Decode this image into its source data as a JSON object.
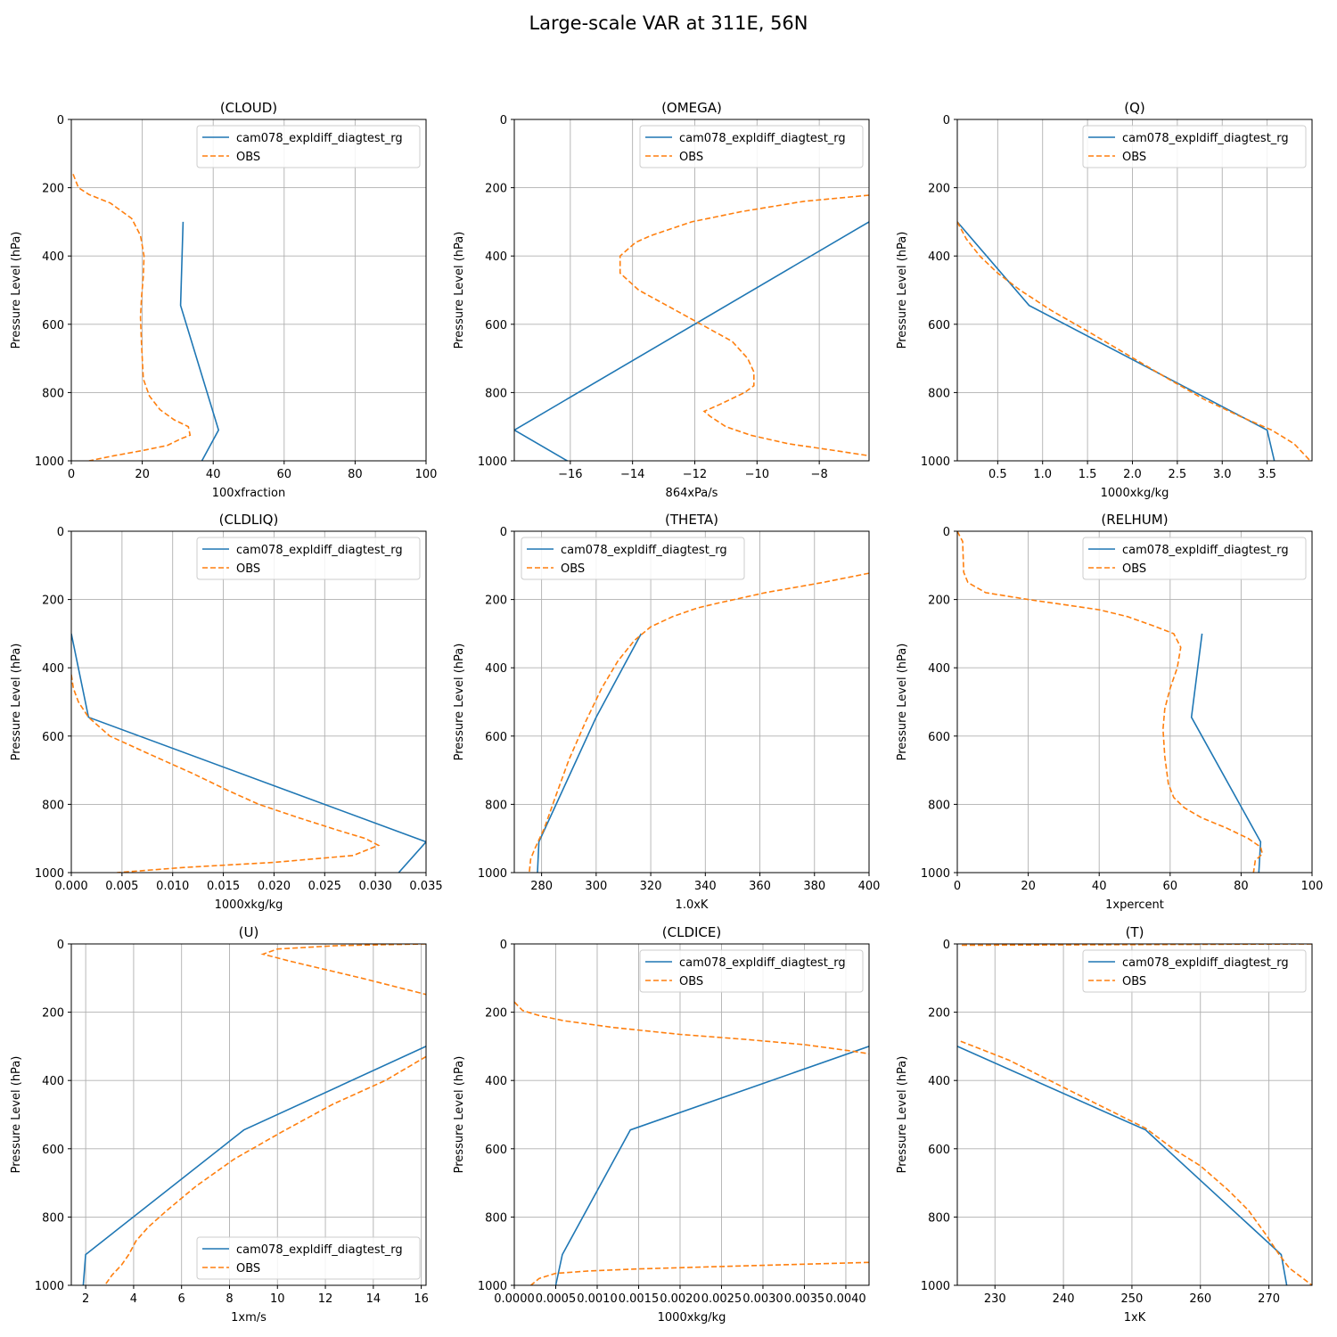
{
  "title": "Large-scale VAR at 311E, 56N",
  "colors": {
    "model": "#1f77b4",
    "obs": "#ff7f0e",
    "grid": "#b0b0b0"
  },
  "chart_data": [
    {
      "type": "line",
      "title": "(CLOUD)",
      "xlabel": "100xfraction",
      "ylabel": "Pressure Level (hPa)",
      "xlim": [
        0,
        100
      ],
      "xticks": [
        0,
        20,
        40,
        60,
        80,
        100
      ],
      "xticklabels": [
        "0",
        "20",
        "40",
        "60",
        "80",
        "100"
      ],
      "ylim": [
        1000,
        0
      ],
      "yticks": [
        0,
        200,
        400,
        600,
        800,
        1000
      ],
      "grid": true,
      "legend": "upper right",
      "series": [
        {
          "name": "cam078_expldiff_diagtest_rg",
          "style": "solid",
          "x": [
            31.5,
            30.8,
            41.5,
            36.8
          ],
          "y": [
            300,
            545,
            910,
            1000
          ]
        },
        {
          "name": "OBS",
          "style": "dashed",
          "x": [
            0.5,
            2,
            5,
            11,
            17,
            19.5,
            20.5,
            20.3,
            19.8,
            19.5,
            19.8,
            20.3,
            22,
            25,
            29,
            33,
            33.5,
            31,
            27,
            20,
            12,
            5
          ],
          "y": [
            160,
            200,
            220,
            245,
            290,
            340,
            400,
            460,
            520,
            580,
            660,
            760,
            810,
            850,
            880,
            900,
            925,
            935,
            955,
            970,
            985,
            1000
          ]
        }
      ]
    },
    {
      "type": "line",
      "title": "(OMEGA)",
      "xlabel": "864xPa/s",
      "ylabel": "Pressure Level (hPa)",
      "xlim": [
        -17.8,
        -6.4
      ],
      "xticks": [
        -16,
        -14,
        -12,
        -10,
        -8
      ],
      "xticklabels": [
        "−16",
        "−14",
        "−12",
        "−10",
        "−8"
      ],
      "ylim": [
        1000,
        0
      ],
      "yticks": [
        0,
        200,
        400,
        600,
        800,
        1000
      ],
      "grid": true,
      "legend": "upper right",
      "series": [
        {
          "name": "cam078_expldiff_diagtest_rg",
          "style": "solid",
          "x": [
            -6.4,
            -17.8,
            -16.1
          ],
          "y": [
            300,
            910,
            1000
          ]
        },
        {
          "name": "OBS",
          "style": "dashed",
          "x": [
            -6.4,
            -8.5,
            -10.5,
            -12.1,
            -13.4,
            -13.9,
            -14.4,
            -14.4,
            -13.8,
            -12.8,
            -11.8,
            -10.8,
            -10.3,
            -10.1,
            -10.1,
            -10.4,
            -11.2,
            -11.7,
            -11.5,
            -11.0,
            -10.2,
            -9.0,
            -7.5,
            -6.4
          ],
          "y": [
            222,
            240,
            270,
            300,
            340,
            360,
            400,
            450,
            500,
            550,
            600,
            650,
            700,
            740,
            780,
            800,
            835,
            855,
            870,
            900,
            925,
            950,
            970,
            985
          ]
        }
      ]
    },
    {
      "type": "line",
      "title": "(Q)",
      "xlabel": "1000xkg/kg",
      "ylabel": "Pressure Level (hPa)",
      "xlim": [
        0.05,
        4.0
      ],
      "xticks": [
        0.5,
        1.0,
        1.5,
        2.0,
        2.5,
        3.0,
        3.5
      ],
      "xticklabels": [
        "0.5",
        "1.0",
        "1.5",
        "2.0",
        "2.5",
        "3.0",
        "3.5"
      ],
      "ylim": [
        1000,
        0
      ],
      "yticks": [
        0,
        200,
        400,
        600,
        800,
        1000
      ],
      "grid": true,
      "legend": "upper right",
      "series": [
        {
          "name": "cam078_expldiff_diagtest_rg",
          "style": "solid",
          "x": [
            0.05,
            0.85,
            3.5,
            3.58
          ],
          "y": [
            300,
            545,
            910,
            1000
          ]
        },
        {
          "name": "OBS",
          "style": "dashed",
          "x": [
            0.05,
            0.15,
            0.3,
            0.5,
            0.75,
            1.1,
            1.5,
            1.95,
            2.4,
            2.8,
            3.2,
            3.55,
            3.8,
            3.98
          ],
          "y": [
            300,
            350,
            400,
            450,
            500,
            560,
            620,
            690,
            760,
            820,
            870,
            910,
            950,
            1000
          ]
        }
      ]
    },
    {
      "type": "line",
      "title": "(CLDLIQ)",
      "xlabel": "1000xkg/kg",
      "ylabel": "Pressure Level (hPa)",
      "xlim": [
        0,
        0.035
      ],
      "xticks": [
        0,
        0.005,
        0.01,
        0.015,
        0.02,
        0.025,
        0.03,
        0.035
      ],
      "xticklabels": [
        "0.000",
        "0.005",
        "0.010",
        "0.015",
        "0.020",
        "0.025",
        "0.030",
        "0.035"
      ],
      "ylim": [
        1000,
        0
      ],
      "yticks": [
        0,
        200,
        400,
        600,
        800,
        1000
      ],
      "grid": true,
      "legend": "upper right",
      "series": [
        {
          "name": "cam078_expldiff_diagtest_rg",
          "style": "solid",
          "x": [
            0.0,
            0.0017,
            0.035,
            0.0323
          ],
          "y": [
            300,
            545,
            910,
            1000
          ]
        },
        {
          "name": "OBS",
          "style": "dashed",
          "x": [
            0.0,
            0.0002,
            0.0007,
            0.0017,
            0.0038,
            0.0075,
            0.012,
            0.0155,
            0.0185,
            0.0225,
            0.0262,
            0.029,
            0.0303,
            0.0278,
            0.02,
            0.011,
            0.0045
          ],
          "y": [
            420,
            460,
            500,
            545,
            600,
            650,
            710,
            760,
            800,
            840,
            875,
            900,
            920,
            950,
            970,
            985,
            1000
          ]
        }
      ]
    },
    {
      "type": "line",
      "title": "(THETA)",
      "xlabel": "1.0xK",
      "ylabel": "Pressure Level (hPa)",
      "xlim": [
        270,
        400
      ],
      "xticks": [
        280,
        300,
        320,
        340,
        360,
        380,
        400
      ],
      "xticklabels": [
        "280",
        "300",
        "320",
        "340",
        "360",
        "380",
        "400"
      ],
      "ylim": [
        1000,
        0
      ],
      "yticks": [
        0,
        200,
        400,
        600,
        800,
        1000
      ],
      "grid": true,
      "legend": "upper left",
      "series": [
        {
          "name": "cam078_expldiff_diagtest_rg",
          "style": "solid",
          "x": [
            316.5,
            300,
            279,
            278.5
          ],
          "y": [
            300,
            545,
            910,
            1000
          ]
        },
        {
          "name": "OBS",
          "style": "dashed",
          "x": [
            400,
            383,
            362,
            345,
            337,
            328,
            320,
            314,
            308,
            302,
            296,
            290,
            285,
            281,
            277.5,
            276,
            275.5
          ],
          "y": [
            123,
            150,
            180,
            210,
            225,
            250,
            280,
            320,
            380,
            460,
            560,
            670,
            780,
            870,
            930,
            960,
            1000
          ]
        }
      ]
    },
    {
      "type": "line",
      "title": "(RELHUM)",
      "xlabel": "1xpercent",
      "ylabel": "Pressure Level (hPa)",
      "xlim": [
        0,
        100
      ],
      "xticks": [
        0,
        20,
        40,
        60,
        80,
        100
      ],
      "xticklabels": [
        "0",
        "20",
        "40",
        "60",
        "80",
        "100"
      ],
      "ylim": [
        1000,
        0
      ],
      "yticks": [
        0,
        200,
        400,
        600,
        800,
        1000
      ],
      "grid": true,
      "legend": "upper right",
      "series": [
        {
          "name": "cam078_expldiff_diagtest_rg",
          "style": "solid",
          "x": [
            69,
            66,
            85.5,
            85
          ],
          "y": [
            300,
            545,
            910,
            1000
          ]
        },
        {
          "name": "OBS",
          "style": "dashed",
          "x": [
            0,
            1.5,
            1.8,
            3,
            8,
            20,
            30,
            40,
            48,
            56,
            61,
            63,
            62,
            60,
            58.5,
            58,
            58.5,
            59.5,
            61,
            64,
            69,
            76,
            82,
            85.5,
            86,
            84,
            83.5
          ],
          "y": [
            0,
            30,
            120,
            150,
            180,
            200,
            215,
            230,
            250,
            280,
            300,
            340,
            400,
            460,
            520,
            580,
            660,
            740,
            780,
            810,
            840,
            870,
            900,
            925,
            945,
            965,
            1000
          ]
        }
      ]
    },
    {
      "type": "line",
      "title": "(U)",
      "xlabel": "1xm/s",
      "ylabel": "Pressure Level (hPa)",
      "xlim": [
        1.4,
        16.2
      ],
      "xticks": [
        2,
        4,
        6,
        8,
        10,
        12,
        14,
        16
      ],
      "xticklabels": [
        "2",
        "4",
        "6",
        "8",
        "10",
        "12",
        "14",
        "16"
      ],
      "ylim": [
        1000,
        0
      ],
      "yticks": [
        0,
        200,
        400,
        600,
        800,
        1000
      ],
      "grid": true,
      "legend": "lower right",
      "series": [
        {
          "name": "cam078_expldiff_diagtest_rg",
          "style": "solid",
          "x": [
            16.2,
            8.6,
            2.0,
            1.9
          ],
          "y": [
            300,
            545,
            910,
            1000
          ]
        },
        {
          "name": "OBS",
          "style": "dashed",
          "x": [
            16.2,
            12.5,
            10.0,
            9.4,
            10.5,
            13.5,
            16.2
          ],
          "y": [
            0,
            5,
            15,
            30,
            50,
            100,
            148
          ]
        },
        {
          "name": "OBS",
          "style": "dashed",
          "x": [
            16.2,
            14.5,
            12.3,
            10.2,
            8.2,
            6.6,
            5.4,
            4.6,
            4.1,
            3.8,
            3.5,
            3.1,
            2.8
          ],
          "y": [
            330,
            400,
            470,
            550,
            630,
            710,
            780,
            830,
            870,
            910,
            940,
            970,
            1000
          ]
        }
      ]
    },
    {
      "type": "line",
      "title": "(CLDICE)",
      "xlabel": "1000xkg/kg",
      "ylabel": "Pressure Level (hPa)",
      "xlim": [
        0,
        0.00428
      ],
      "xticks": [
        0,
        0.0005,
        0.001,
        0.0015,
        0.002,
        0.0025,
        0.003,
        0.0035,
        0.004
      ],
      "xticklabels": [
        "0.0000",
        "0.0005",
        "0.0010",
        "0.0015",
        "0.0020",
        "0.0025",
        "0.0030",
        "0.0035",
        "0.0040"
      ],
      "ylim": [
        1000,
        0
      ],
      "yticks": [
        0,
        200,
        400,
        600,
        800,
        1000
      ],
      "grid": true,
      "legend": "upper right",
      "series": [
        {
          "name": "cam078_expldiff_diagtest_rg",
          "style": "solid",
          "x": [
            0.00428,
            0.0014,
            0.00058,
            0.0005
          ],
          "y": [
            300,
            545,
            910,
            1000
          ]
        },
        {
          "name": "OBS",
          "style": "dashed",
          "x": [
            0.0,
            0.0001,
            0.0003,
            0.0006,
            0.0012,
            0.002,
            0.0028,
            0.0035,
            0.0041,
            0.00428
          ],
          "y": [
            170,
            195,
            210,
            225,
            245,
            265,
            280,
            295,
            315,
            322
          ]
        },
        {
          "name": "OBS",
          "style": "dashed",
          "x": [
            0.00428,
            0.0025,
            0.0015,
            0.0009,
            0.0005,
            0.0003,
            0.0002
          ],
          "y": [
            933,
            945,
            952,
            958,
            965,
            980,
            1000
          ]
        }
      ]
    },
    {
      "type": "line",
      "title": "(T)",
      "xlabel": "1xK",
      "ylabel": "Pressure Level (hPa)",
      "xlim": [
        224.5,
        276.3
      ],
      "xticks": [
        230,
        240,
        250,
        260,
        270
      ],
      "xticklabels": [
        "230",
        "240",
        "250",
        "260",
        "270"
      ],
      "ylim": [
        1000,
        0
      ],
      "yticks": [
        0,
        200,
        400,
        600,
        800,
        1000
      ],
      "grid": true,
      "legend": "upper right",
      "series": [
        {
          "name": "cam078_expldiff_diagtest_rg",
          "style": "solid",
          "x": [
            224.5,
            252,
            271.8,
            272.6
          ],
          "y": [
            300,
            545,
            910,
            1000
          ]
        },
        {
          "name": "OBS",
          "style": "dashed",
          "x": [
            276.3,
            250,
            225,
            225
          ],
          "y": [
            0,
            2,
            4,
            8
          ]
        },
        {
          "name": "OBS",
          "style": "dashed",
          "x": [
            225,
            232,
            240,
            247,
            252,
            256,
            260,
            264,
            267,
            269.5,
            271.5,
            273,
            275,
            276.3
          ],
          "y": [
            285,
            340,
            420,
            490,
            540,
            600,
            650,
            720,
            780,
            850,
            910,
            950,
            980,
            1000
          ]
        }
      ]
    }
  ]
}
